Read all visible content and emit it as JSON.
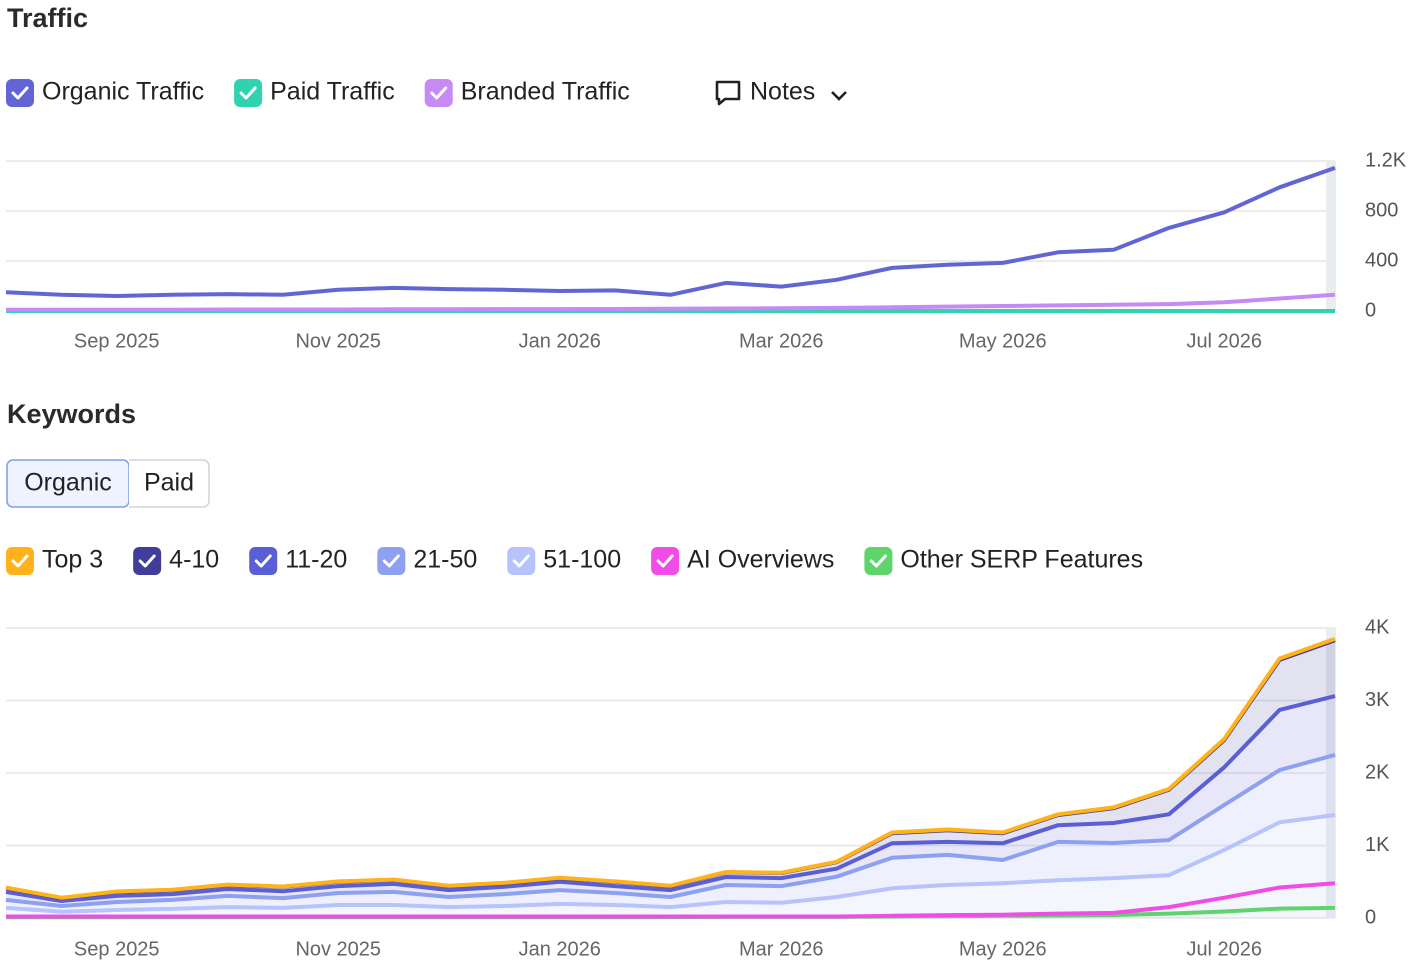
{
  "chart_data": [
    {
      "type": "line",
      "title": "Traffic",
      "categories": [
        null,
        null,
        "Sep 2025",
        null,
        null,
        null,
        "Nov 2025",
        null,
        null,
        null,
        "Jan 2026",
        null,
        null,
        null,
        "Mar 2026",
        null,
        null,
        null,
        "May 2026",
        null,
        null,
        null,
        "Jul 2026",
        null,
        null
      ],
      "series": [
        {
          "name": "Organic Traffic",
          "color": "#6266d4",
          "values": [
            150,
            130,
            120,
            130,
            135,
            130,
            170,
            185,
            175,
            170,
            160,
            165,
            130,
            225,
            195,
            250,
            345,
            370,
            385,
            470,
            490,
            665,
            790,
            990,
            1145
          ]
        },
        {
          "name": "Paid Traffic",
          "color": "#2fd3b0",
          "values": [
            0,
            0,
            0,
            0,
            0,
            0,
            0,
            0,
            0,
            0,
            0,
            0,
            0,
            0,
            0,
            0,
            0,
            0,
            0,
            0,
            0,
            0,
            0,
            0,
            0
          ]
        },
        {
          "name": "Branded Traffic",
          "color": "#c58af3",
          "values": [
            10,
            10,
            10,
            10,
            12,
            12,
            12,
            14,
            14,
            15,
            15,
            16,
            18,
            20,
            22,
            25,
            30,
            35,
            40,
            45,
            50,
            55,
            70,
            100,
            130
          ]
        }
      ],
      "ylim": [
        0,
        1200
      ],
      "yticks": [
        0,
        400,
        800,
        {
          "value": 1200,
          "label": "1.2K"
        }
      ],
      "grid": true
    },
    {
      "type": "area",
      "title": "Keywords",
      "categories": [
        null,
        null,
        "Sep 2025",
        null,
        null,
        null,
        "Nov 2025",
        null,
        null,
        null,
        "Jan 2026",
        null,
        null,
        null,
        "Mar 2026",
        null,
        null,
        null,
        "May 2026",
        null,
        null,
        null,
        "Jul 2026",
        null,
        null
      ],
      "series": [
        {
          "name": "Top 3",
          "color": "#ffb21a",
          "stacked": true,
          "values": [
            5,
            5,
            5,
            5,
            5,
            5,
            5,
            5,
            5,
            5,
            5,
            5,
            5,
            5,
            5,
            5,
            10,
            10,
            10,
            10,
            10,
            10,
            15,
            20,
            20
          ]
        },
        {
          "name": "4-10",
          "color": "#403e9a",
          "stacked": true,
          "values": [
            54,
            40,
            55,
            55,
            55,
            60,
            60,
            55,
            55,
            50,
            50,
            60,
            55,
            65,
            70,
            90,
            140,
            160,
            140,
            140,
            205,
            340,
            375,
            690,
            770
          ]
        },
        {
          "name": "11-20",
          "color": "#5b5fd6",
          "stacked": true,
          "values": [
            110,
            70,
            85,
            80,
            95,
            95,
            95,
            110,
            95,
            100,
            115,
            95,
            95,
            110,
            110,
            110,
            200,
            180,
            230,
            230,
            275,
            355,
            520,
            830,
            810
          ]
        },
        {
          "name": "21-50",
          "color": "#8ea0f0",
          "stacked": true,
          "values": [
            110,
            80,
            110,
            125,
            155,
            135,
            165,
            180,
            140,
            165,
            190,
            165,
            140,
            235,
            230,
            280,
            420,
            415,
            320,
            530,
            485,
            485,
            620,
            720,
            830
          ]
        },
        {
          "name": "51-100",
          "color": "#b7c3fb",
          "stacked": true,
          "values": [
            140,
            85,
            110,
            125,
            150,
            140,
            180,
            180,
            150,
            165,
            195,
            180,
            150,
            220,
            210,
            290,
            410,
            455,
            480,
            520,
            550,
            590,
            940,
            1320,
            1420
          ]
        },
        {
          "name": "AI Overviews",
          "color": "#f14de6",
          "stacked": false,
          "values": [
            20,
            20,
            20,
            20,
            20,
            20,
            20,
            20,
            20,
            20,
            20,
            20,
            20,
            20,
            20,
            20,
            30,
            40,
            45,
            60,
            70,
            150,
            280,
            420,
            480
          ]
        },
        {
          "name": "Other SERP Features",
          "color": "#5fd46b",
          "stacked": false,
          "values": [
            10,
            10,
            10,
            10,
            10,
            10,
            10,
            10,
            10,
            10,
            10,
            10,
            12,
            15,
            15,
            15,
            20,
            25,
            30,
            35,
            40,
            60,
            90,
            130,
            140
          ]
        }
      ],
      "ylim": [
        0,
        4000
      ],
      "yticks": [
        0,
        {
          "value": 1000,
          "label": "1K"
        },
        {
          "value": 2000,
          "label": "2K"
        },
        {
          "value": 3000,
          "label": "3K"
        },
        {
          "value": 4000,
          "label": "4K"
        }
      ],
      "grid": true
    }
  ],
  "controls": {
    "notes": "Notes",
    "keyword_tabs": [
      "Organic",
      "Paid"
    ]
  }
}
